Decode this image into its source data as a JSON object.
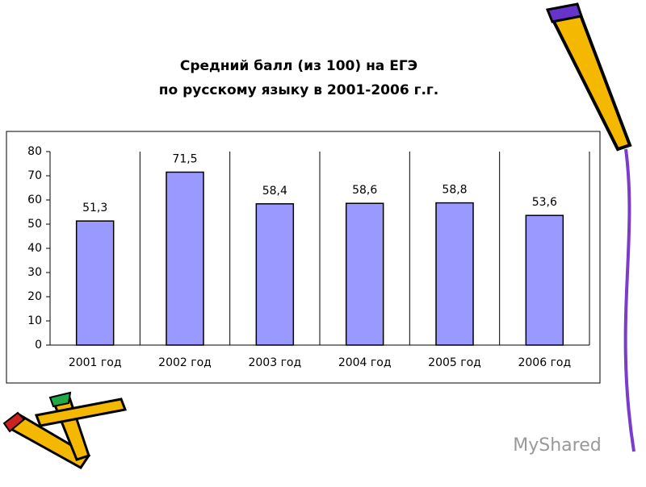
{
  "chart_data": {
    "type": "bar",
    "title": "Средний балл (из 100) на ЕГЭ",
    "subtitle": "по русскому языку в 2001-2006 г.г.",
    "categories": [
      "2001 год",
      "2002 год",
      "2003 год",
      "2004 год",
      "2005 год",
      "2006 год"
    ],
    "values": [
      51.3,
      71.5,
      58.4,
      58.6,
      58.8,
      53.6
    ],
    "value_labels": [
      "51,3",
      "71,5",
      "58,4",
      "58,6",
      "58,8",
      "53,6"
    ],
    "color": "#9999ff",
    "ylim": [
      0,
      80
    ],
    "yticks": [
      0,
      10,
      20,
      30,
      40,
      50,
      60,
      70,
      80
    ]
  },
  "watermark": "MyShared"
}
